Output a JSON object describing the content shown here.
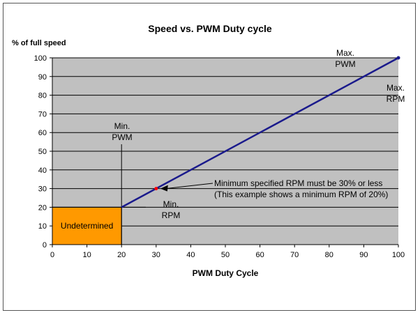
{
  "chart_data": {
    "type": "line",
    "title": "Speed vs. PWM Duty cycle",
    "xlabel": "PWM Duty Cycle",
    "ylabel": "% of full speed",
    "xlim": [
      0,
      100
    ],
    "ylim": [
      0,
      100
    ],
    "xticks": [
      0,
      10,
      20,
      30,
      40,
      50,
      60,
      70,
      80,
      90,
      100
    ],
    "yticks": [
      0,
      10,
      20,
      30,
      40,
      50,
      60,
      70,
      80,
      90,
      100
    ],
    "series": [
      {
        "name": "Speed",
        "x": [
          20,
          100
        ],
        "y": [
          20,
          100
        ],
        "color": "#1a1a8c"
      }
    ],
    "region": {
      "label": "Undetermined",
      "x": [
        0,
        20
      ],
      "y": [
        0,
        20
      ],
      "color": "#ff9900"
    },
    "marker": {
      "x": 30,
      "y": 30,
      "color": "#ff0000"
    },
    "annotations": {
      "min_pwm": [
        "Min.",
        "PWM"
      ],
      "min_rpm": [
        "Min.",
        "RPM"
      ],
      "max_pwm": [
        "Max.",
        "PWM"
      ],
      "max_rpm": [
        "Max.",
        "RPM"
      ],
      "note": [
        "Minimum specified RPM must be 30% or less",
        "(This example shows a minimum RPM of 20%)"
      ]
    },
    "plot_bg": "#c0c0c0",
    "grid": true
  }
}
